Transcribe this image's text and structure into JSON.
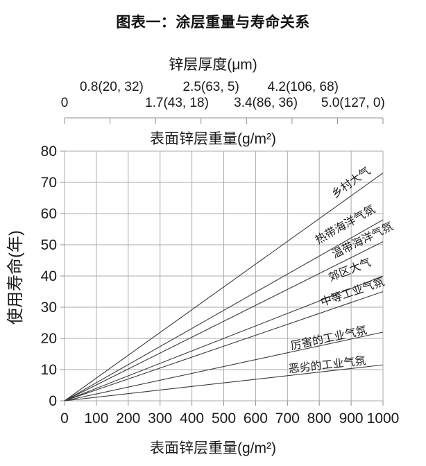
{
  "chart_data": {
    "type": "line",
    "title": "图表一：涂层重量与寿命关系",
    "top_axis": {
      "title": "锌层厚度(μm)",
      "subtitle": "表面锌层重量(g/m²)",
      "tick_count": 8,
      "labels": [
        {
          "text": "0",
          "row": "lower",
          "pos": 0.0
        },
        {
          "text": "0.8(20, 32)",
          "row": "upper",
          "pos": 0.148
        },
        {
          "text": "1.7(43, 18)",
          "row": "lower",
          "pos": 0.353
        },
        {
          "text": "2.5(63, 5)",
          "row": "upper",
          "pos": 0.46
        },
        {
          "text": "3.4(86, 36)",
          "row": "lower",
          "pos": 0.632
        },
        {
          "text": "4.2(106, 68)",
          "row": "upper",
          "pos": 0.749
        },
        {
          "text": "5.0(127, 0)",
          "row": "lower",
          "pos": 0.906
        }
      ]
    },
    "x_axis": {
      "label": "表面锌层重量(g/m²)",
      "min": 0,
      "max": 1000,
      "ticks": [
        0,
        100,
        200,
        300,
        400,
        500,
        600,
        700,
        800,
        900,
        1000
      ]
    },
    "y_axis": {
      "label": "使用寿命(年)",
      "min": 0,
      "max": 80,
      "ticks": [
        0,
        10,
        20,
        30,
        40,
        50,
        60,
        70,
        80
      ]
    },
    "grid": true,
    "legend_position": "on-line-labels",
    "series": [
      {
        "id": "rural-atmosphere",
        "name": "乡村大气",
        "x": [
          0,
          1000
        ],
        "y": [
          0,
          73
        ],
        "label_pos": 0.906,
        "label_dy": 13
      },
      {
        "id": "tropical-marine",
        "name": "热带海洋气氛",
        "x": [
          0,
          1000
        ],
        "y": [
          0,
          58
        ],
        "label_pos": 0.887,
        "label_dy": 18
      },
      {
        "id": "temperate-marine",
        "name": "温带海洋气氛",
        "x": [
          0,
          1000
        ],
        "y": [
          0,
          51
        ],
        "label_pos": 0.941,
        "label_dy": 11
      },
      {
        "id": "suburban-atmosphere",
        "name": "郊区大气",
        "x": [
          0,
          1000
        ],
        "y": [
          0,
          40
        ],
        "label_pos": 0.9,
        "label_dy": 22
      },
      {
        "id": "moderate-industrial",
        "name": "中等工业气氛",
        "x": [
          0,
          1000
        ],
        "y": [
          0,
          35
        ],
        "label_pos": 0.908,
        "label_dy": 9
      },
      {
        "id": "severe-industrial",
        "name": "厉害的工业气氛",
        "x": [
          0,
          1000
        ],
        "y": [
          0,
          22
        ],
        "label_pos": 0.832,
        "label_dy": 3
      },
      {
        "id": "harsh-industrial",
        "name": "恶劣的工业气氛",
        "x": [
          0,
          1000
        ],
        "y": [
          0,
          11.5
        ],
        "label_pos": 0.826,
        "label_dy": 4
      }
    ],
    "colors": {
      "grid": "#ababab",
      "axis": "#8f8f8f",
      "series_line": "#3a3a3a",
      "text": "#1a1a1a"
    }
  }
}
